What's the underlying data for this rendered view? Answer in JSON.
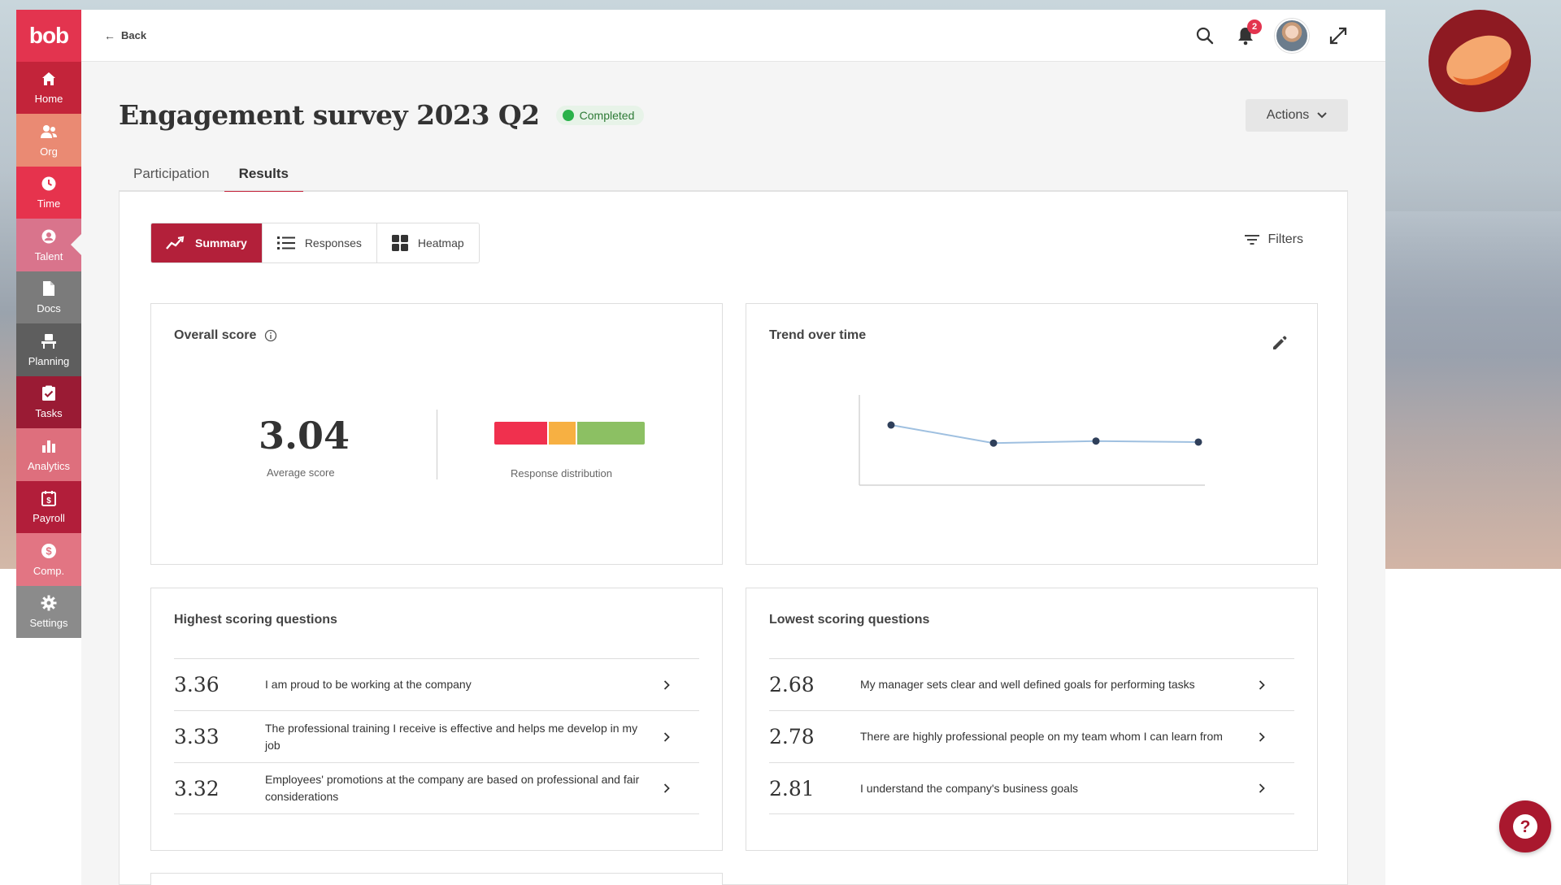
{
  "brand": {
    "logo_text": "bob",
    "accent": "#e3344f"
  },
  "sidebar": {
    "items": [
      {
        "label": "Home",
        "icon": "home-icon",
        "color": "#c3243a"
      },
      {
        "label": "Org",
        "icon": "people-icon",
        "color": "#ea8a73"
      },
      {
        "label": "Time",
        "icon": "clock-icon",
        "color": "#e6334d"
      },
      {
        "label": "Talent",
        "icon": "user-circle-icon",
        "color": "#d9748c"
      },
      {
        "label": "Docs",
        "icon": "document-icon",
        "color": "#7b7b7b"
      },
      {
        "label": "Planning",
        "icon": "chair-icon",
        "color": "#5e5e5e"
      },
      {
        "label": "Tasks",
        "icon": "clipboard-check-icon",
        "color": "#9a1b34"
      },
      {
        "label": "Analytics",
        "icon": "bar-chart-icon",
        "color": "#de6f7d"
      },
      {
        "label": "Payroll",
        "icon": "calendar-dollar-icon",
        "color": "#b21e3a"
      },
      {
        "label": "Comp.",
        "icon": "dollar-circle-icon",
        "color": "#e27583"
      },
      {
        "label": "Settings",
        "icon": "gear-icon",
        "color": "#8b8b8b"
      }
    ]
  },
  "topbar": {
    "back_label": "Back",
    "notification_count": "2"
  },
  "page": {
    "title": "Engagement survey 2023 Q2",
    "status": "Completed",
    "actions_label": "Actions",
    "tabs": [
      {
        "label": "Participation"
      },
      {
        "label": "Results"
      }
    ],
    "views": [
      {
        "label": "Summary"
      },
      {
        "label": "Responses"
      },
      {
        "label": "Heatmap"
      }
    ],
    "filters_label": "Filters"
  },
  "overall": {
    "title": "Overall score",
    "score": "3.04",
    "score_label": "Average score",
    "distribution_label": "Response distribution",
    "distribution": [
      {
        "fraction": 0.36,
        "color": "#f0304e"
      },
      {
        "fraction": 0.19,
        "color": "#f7b042"
      },
      {
        "fraction": 0.45,
        "color": "#8cc063"
      }
    ]
  },
  "trend": {
    "title": "Trend over time"
  },
  "chart_data": {
    "type": "line",
    "title": "Trend over time",
    "xlabel": "",
    "ylabel": "",
    "x": [
      1,
      2,
      3,
      4
    ],
    "series": [
      {
        "values": [
          3.2,
          3.02,
          3.04,
          3.03
        ]
      }
    ],
    "ylim": [
      2.6,
      3.5
    ],
    "grid": false,
    "line_color": "#9fc0e0",
    "point_color": "#2f3f5a"
  },
  "highest": {
    "title": "Highest scoring questions",
    "items": [
      {
        "score": "3.36",
        "text": "I am proud to be working at the company"
      },
      {
        "score": "3.33",
        "text": "The professional training I receive is effective and helps me develop in my job"
      },
      {
        "score": "3.32",
        "text": "Employees' promotions at the company are based on professional and fair considerations"
      }
    ]
  },
  "lowest": {
    "title": "Lowest scoring questions",
    "items": [
      {
        "score": "2.68",
        "text": "My manager sets clear and well defined goals for performing tasks"
      },
      {
        "score": "2.78",
        "text": "There are highly professional people on my team whom I can learn from"
      },
      {
        "score": "2.81",
        "text": "I understand the company's business goals"
      }
    ]
  }
}
